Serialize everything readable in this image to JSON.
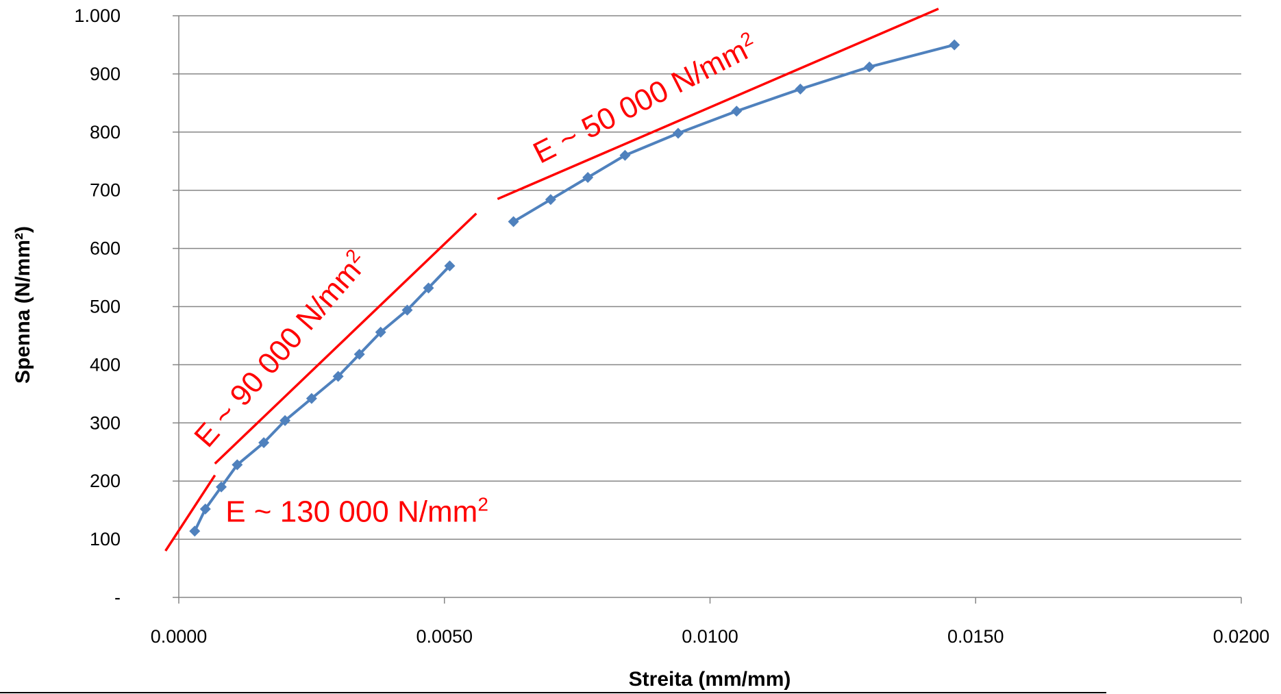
{
  "chart_data": {
    "type": "scatter",
    "title": "",
    "xlabel": "Streita (mm/mm)",
    "ylabel": "Spenna (N/mm²)",
    "xlim": [
      0,
      0.02
    ],
    "ylim": [
      0,
      1000
    ],
    "xticks": [
      0,
      0.005,
      0.01,
      0.015,
      0.02
    ],
    "xtick_labels": [
      "0.0000",
      "0.0050",
      "0.0100",
      "0.0150",
      "0.0200"
    ],
    "yticks": [
      0,
      100,
      200,
      300,
      400,
      500,
      600,
      700,
      800,
      900,
      1000
    ],
    "ytick_labels": [
      "-",
      "100",
      "200",
      "300",
      "400",
      "500",
      "600",
      "700",
      "800",
      "900",
      "1.000"
    ],
    "grid": true,
    "legend": "none",
    "series_color": "#4F81BD",
    "series": [
      {
        "x": [
          0.0003,
          0.0005,
          0.0008,
          0.0011,
          0.0016,
          0.002,
          0.0025,
          0.003,
          0.0034,
          0.0038,
          0.0043,
          0.0047,
          0.0051
        ],
        "y": [
          114,
          152,
          190,
          228,
          266,
          304,
          342,
          380,
          418,
          456,
          494,
          532,
          570
        ]
      },
      {
        "x": [
          0.0063,
          0.007,
          0.0077,
          0.0084,
          0.0094,
          0.0105,
          0.0117,
          0.013,
          0.0146
        ],
        "y": [
          646,
          684,
          722,
          760,
          798,
          836,
          874,
          912,
          950
        ]
      }
    ],
    "annotation_color": "#FF0000",
    "fit_lines": [
      {
        "x": [
          -0.00025,
          0.00068
        ],
        "y": [
          80,
          210
        ]
      },
      {
        "x": [
          0.00068,
          0.0056
        ],
        "y": [
          230,
          660
        ]
      },
      {
        "x": [
          0.006,
          0.0143
        ],
        "y": [
          685,
          1012
        ]
      }
    ],
    "annotations": [
      {
        "text": "E ~ 130 000 N/mm",
        "sup": "2",
        "x": 0.00088,
        "y": 130,
        "angle": 0
      },
      {
        "text": "E ~ 90 000 N/mm",
        "sup": "2",
        "x": 0.00055,
        "y": 255,
        "angle": -49
      },
      {
        "text": "E ~ 50 000 N/mm",
        "sup": "2",
        "x": 0.0068,
        "y": 745,
        "angle": -27
      }
    ]
  }
}
